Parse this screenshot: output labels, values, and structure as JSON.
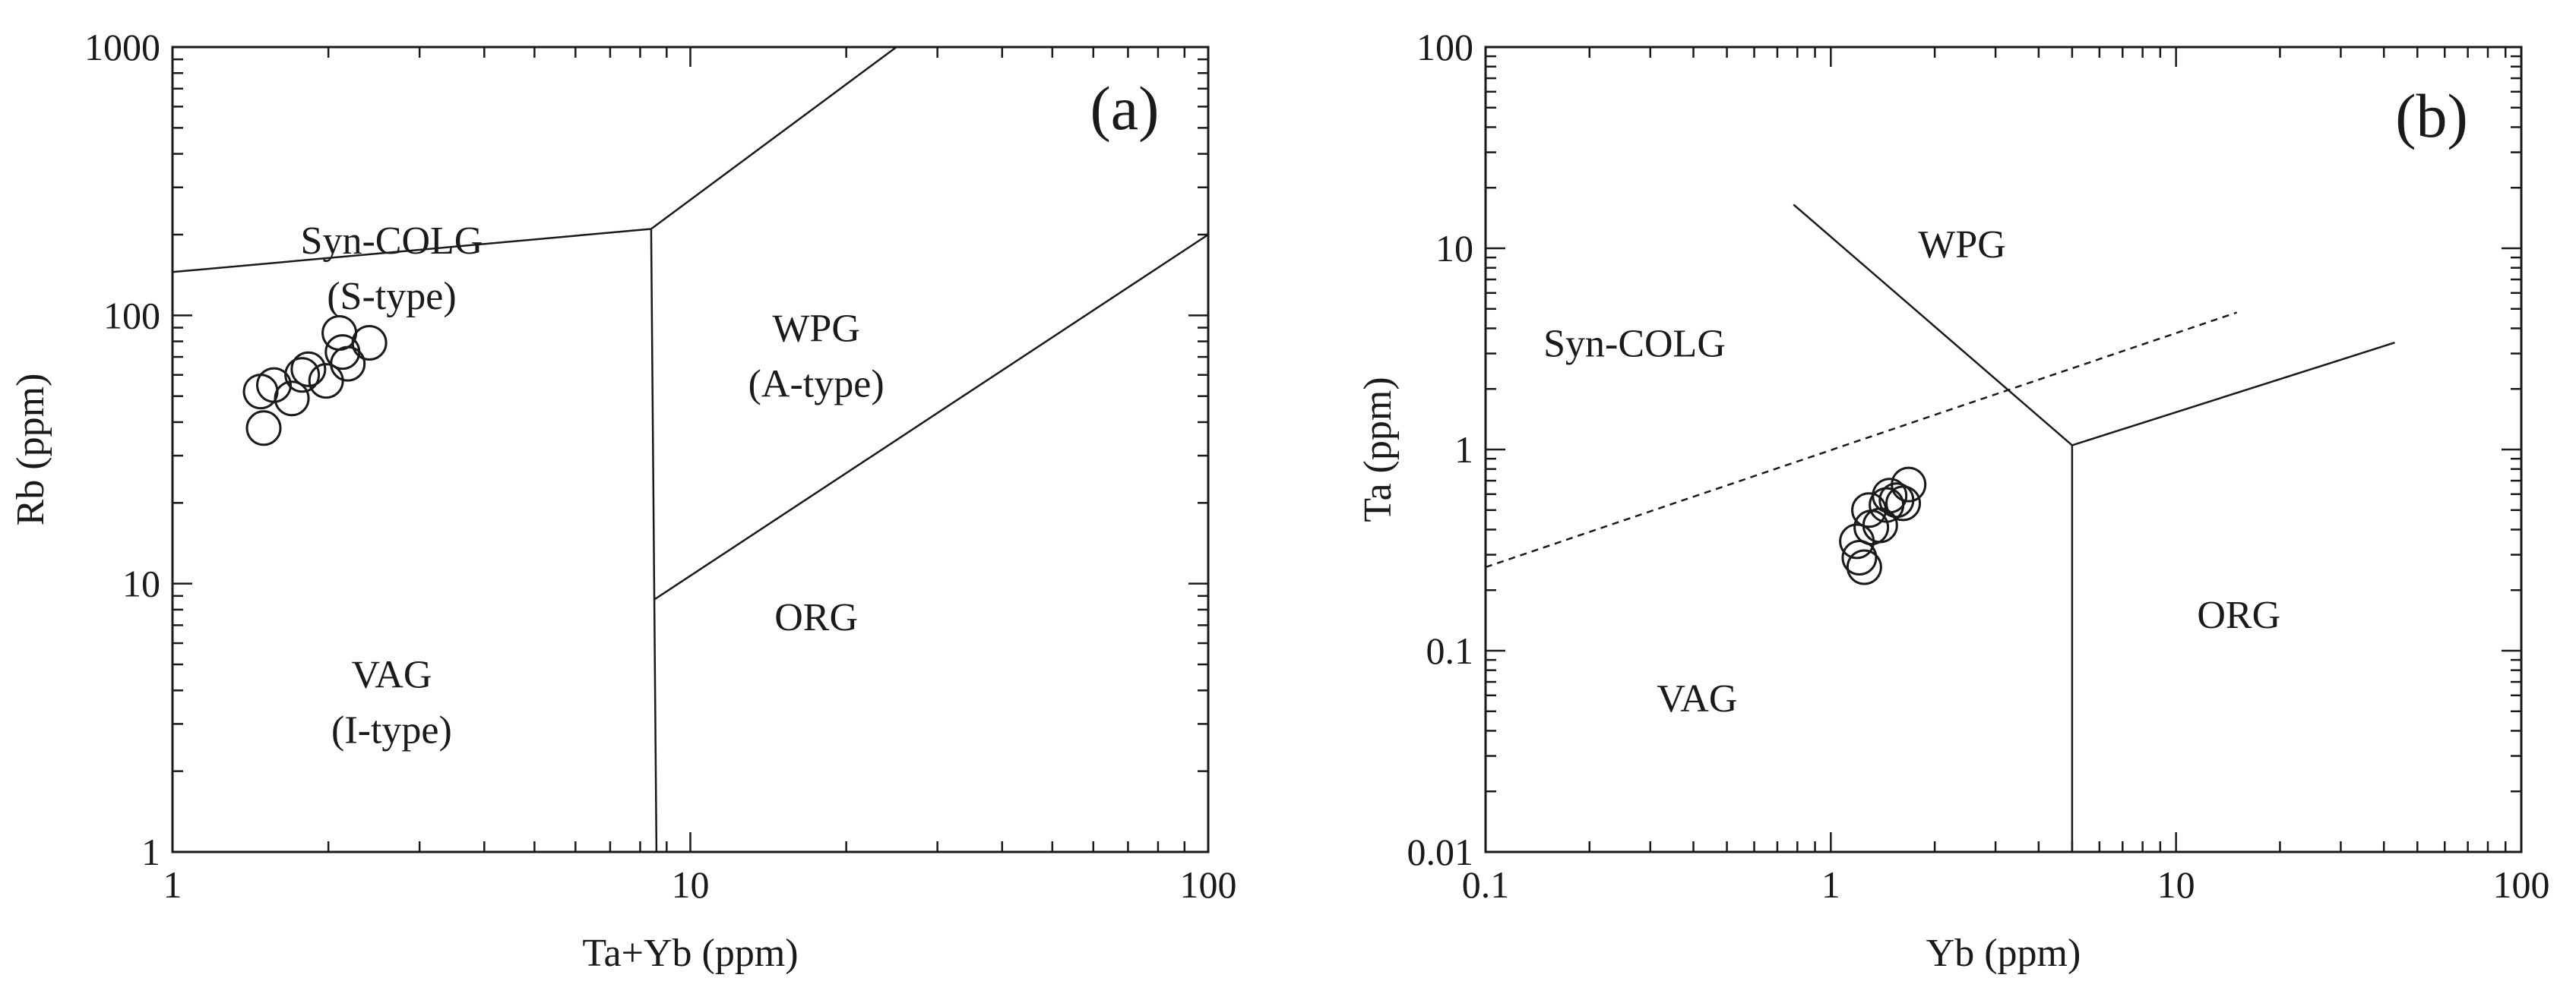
{
  "colors": {
    "ink": "#1a1a1a",
    "background": "#ffffff"
  },
  "chart_data": [
    {
      "type": "scatter",
      "panel_label": "(a)",
      "xlabel": "Ta+Yb (ppm)",
      "ylabel": "Rb (ppm)",
      "xscale": "log",
      "yscale": "log",
      "xlim": [
        1,
        100
      ],
      "ylim": [
        1,
        1000
      ],
      "xticks": [
        {
          "value": 1,
          "label": "1"
        },
        {
          "value": 10,
          "label": "10"
        },
        {
          "value": 100,
          "label": "100"
        }
      ],
      "yticks": [
        {
          "value": 1,
          "label": "1"
        },
        {
          "value": 10,
          "label": "10"
        },
        {
          "value": 100,
          "label": "100"
        },
        {
          "value": 1000,
          "label": "1000"
        }
      ],
      "boundaries": [
        {
          "style": "solid",
          "points": [
            [
              1,
              145
            ],
            [
              8.4,
              210
            ]
          ]
        },
        {
          "style": "solid",
          "points": [
            [
              8.4,
              210
            ],
            [
              25,
              1000
            ]
          ]
        },
        {
          "style": "solid",
          "points": [
            [
              8.4,
              210
            ],
            [
              8.6,
              1
            ]
          ]
        },
        {
          "style": "solid",
          "points": [
            [
              8.5,
              8.7
            ],
            [
              100,
              200
            ]
          ]
        }
      ],
      "fields": [
        {
          "lines": [
            "Syn-COLG",
            "(S-type)"
          ],
          "at": [
            2.65,
            170
          ]
        },
        {
          "lines": [
            "WPG",
            "(A-type)"
          ],
          "at": [
            17.5,
            80
          ]
        },
        {
          "lines": [
            "VAG",
            "(I-type)"
          ],
          "at": [
            2.65,
            4.1
          ]
        },
        {
          "lines": [
            "ORG"
          ],
          "at": [
            17.5,
            6.7
          ]
        }
      ],
      "points": [
        {
          "x": 1.48,
          "y": 52
        },
        {
          "x": 1.57,
          "y": 55
        },
        {
          "x": 1.5,
          "y": 38
        },
        {
          "x": 1.7,
          "y": 49
        },
        {
          "x": 1.78,
          "y": 60
        },
        {
          "x": 1.83,
          "y": 63
        },
        {
          "x": 1.98,
          "y": 57
        },
        {
          "x": 2.1,
          "y": 86
        },
        {
          "x": 2.13,
          "y": 73
        },
        {
          "x": 2.18,
          "y": 66
        },
        {
          "x": 2.4,
          "y": 79
        }
      ]
    },
    {
      "type": "scatter",
      "panel_label": "(b)",
      "xlabel": "Yb (ppm)",
      "ylabel": "Ta (ppm)",
      "xscale": "log",
      "yscale": "log",
      "xlim": [
        0.1,
        100
      ],
      "ylim": [
        0.01,
        100
      ],
      "xticks": [
        {
          "value": 0.1,
          "label": "0.1"
        },
        {
          "value": 1,
          "label": "1"
        },
        {
          "value": 10,
          "label": "10"
        },
        {
          "value": 100,
          "label": "100"
        }
      ],
      "yticks": [
        {
          "value": 0.01,
          "label": "0.01"
        },
        {
          "value": 0.1,
          "label": "0.1"
        },
        {
          "value": 1,
          "label": "1"
        },
        {
          "value": 10,
          "label": "10"
        },
        {
          "value": 100,
          "label": "100"
        }
      ],
      "boundaries": [
        {
          "style": "solid",
          "points": [
            [
              0.78,
              16.5
            ],
            [
              5.0,
              1.05
            ]
          ]
        },
        {
          "style": "solid",
          "points": [
            [
              5.0,
              1.05
            ],
            [
              43,
              3.4
            ]
          ]
        },
        {
          "style": "solid",
          "points": [
            [
              5.0,
              1.05
            ],
            [
              5.0,
              0.01
            ]
          ]
        },
        {
          "style": "dashed",
          "points": [
            [
              0.1,
              0.26
            ],
            [
              15,
              4.8
            ]
          ]
        }
      ],
      "fields": [
        {
          "lines": [
            "WPG"
          ],
          "at": [
            2.4,
            9
          ]
        },
        {
          "lines": [
            "Syn-COLG"
          ],
          "at": [
            0.27,
            2.9
          ]
        },
        {
          "lines": [
            "VAG"
          ],
          "at": [
            0.41,
            0.05
          ]
        },
        {
          "lines": [
            "ORG"
          ],
          "at": [
            15.2,
            0.13
          ]
        }
      ],
      "points": [
        {
          "x": 1.19,
          "y": 0.35
        },
        {
          "x": 1.21,
          "y": 0.29
        },
        {
          "x": 1.25,
          "y": 0.26
        },
        {
          "x": 1.29,
          "y": 0.5
        },
        {
          "x": 1.31,
          "y": 0.41
        },
        {
          "x": 1.39,
          "y": 0.42
        },
        {
          "x": 1.45,
          "y": 0.53
        },
        {
          "x": 1.48,
          "y": 0.59
        },
        {
          "x": 1.55,
          "y": 0.56
        },
        {
          "x": 1.62,
          "y": 0.54
        },
        {
          "x": 1.68,
          "y": 0.67
        }
      ]
    }
  ]
}
